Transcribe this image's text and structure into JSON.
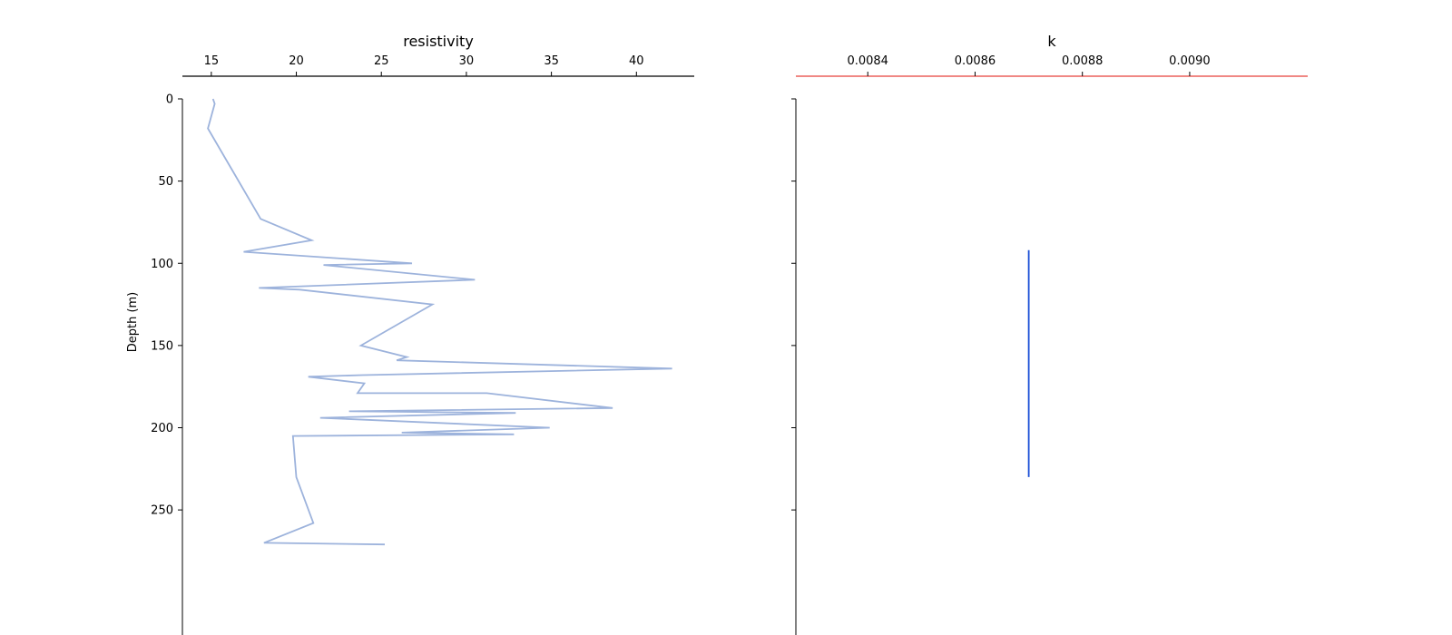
{
  "chart_data": [
    {
      "type": "line",
      "title": "",
      "xlabel": "resistivity",
      "ylabel": "Depth (m)",
      "xlim": [
        13.3,
        43.4
      ],
      "ylim": [
        325,
        0
      ],
      "x_ticks": [
        15,
        20,
        25,
        30,
        35,
        40
      ],
      "y_ticks": [
        0,
        50,
        100,
        150,
        200,
        250
      ],
      "x_axis_position": "top",
      "grid": false,
      "series": [
        {
          "color": "#9db3dc",
          "points": [
            [
              15.1,
              0
            ],
            [
              15.2,
              3
            ],
            [
              14.8,
              18
            ],
            [
              17.9,
              73
            ],
            [
              20.9,
              86
            ],
            [
              16.9,
              93
            ],
            [
              26.8,
              100
            ],
            [
              21.6,
              101
            ],
            [
              30.5,
              110
            ],
            [
              17.8,
              115
            ],
            [
              20.2,
              116
            ],
            [
              28.0,
              125
            ],
            [
              23.8,
              150
            ],
            [
              26.5,
              157
            ],
            [
              25.9,
              159
            ],
            [
              42.1,
              164
            ],
            [
              23.9,
              168
            ],
            [
              20.7,
              169
            ],
            [
              24.0,
              173
            ],
            [
              23.6,
              179
            ],
            [
              31.2,
              179
            ],
            [
              38.6,
              188
            ],
            [
              23.1,
              190
            ],
            [
              32.9,
              191
            ],
            [
              21.4,
              194
            ],
            [
              34.9,
              200
            ],
            [
              26.2,
              203
            ],
            [
              32.8,
              204
            ],
            [
              19.8,
              205
            ],
            [
              20.0,
              230
            ],
            [
              21.0,
              258
            ],
            [
              18.1,
              270
            ],
            [
              25.2,
              271
            ]
          ]
        }
      ]
    },
    {
      "type": "line",
      "title": "",
      "xlabel": "k",
      "ylabel": "",
      "xlim": [
        0.008266,
        0.00922
      ],
      "ylim": [
        325,
        0
      ],
      "x_ticks": [
        0.0084,
        0.0086,
        0.0088,
        0.009
      ],
      "x_tick_labels": [
        "0.0084",
        "0.0086",
        "0.0088",
        "0.0090"
      ],
      "y_ticks": [
        0,
        50,
        100,
        150,
        200,
        250
      ],
      "x_axis_position": "top",
      "x_axis_color": "#e8423a",
      "grid": false,
      "series": [
        {
          "color": "#1a4fd6",
          "points": [
            [
              0.0087,
              92
            ],
            [
              0.0087,
              230
            ]
          ]
        }
      ]
    }
  ]
}
